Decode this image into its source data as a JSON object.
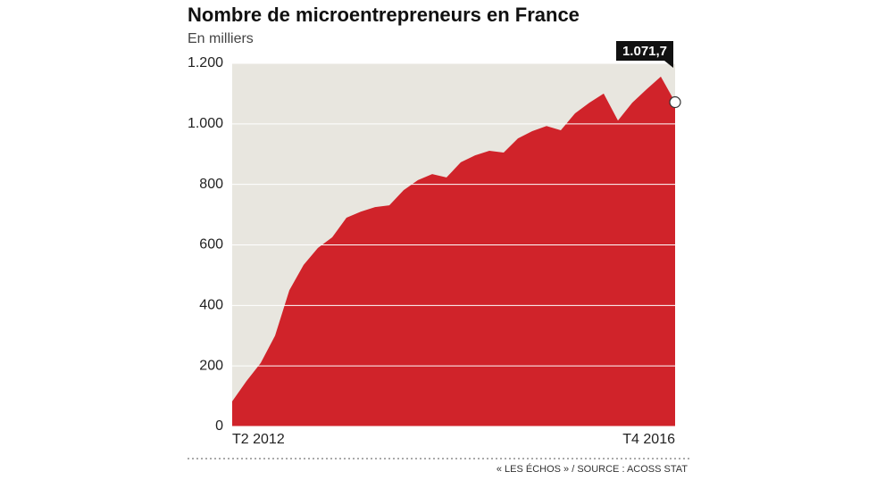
{
  "chart_data": {
    "type": "area",
    "title": "Nombre de microentrepreneurs en France",
    "subtitle": "En milliers",
    "source": "« LES ÉCHOS » / SOURCE : ACOSS STAT",
    "categories": [
      "T2 2012",
      null,
      null,
      null,
      null,
      null,
      null,
      null,
      null,
      null,
      null,
      null,
      null,
      null,
      null,
      null,
      null,
      null,
      null,
      null,
      null,
      null,
      null,
      null,
      null,
      null,
      null,
      null,
      null,
      null,
      null,
      "T4 2016"
    ],
    "series": [
      {
        "name": "Microentrepreneurs",
        "color": "#d0232a",
        "values": [
          83,
          150,
          210,
          300,
          450,
          534,
          590,
          625,
          690,
          710,
          725,
          731,
          781,
          814,
          834,
          823,
          873,
          896,
          911,
          905,
          952,
          976,
          993,
          979,
          1035,
          1070,
          1100,
          1011,
          1070,
          1114,
          1156,
          1071.7
        ],
        "value_labels": {
          "31": "1.071,7"
        }
      }
    ],
    "ylim": [
      0,
      1200
    ],
    "yticks": [
      0,
      200,
      400,
      600,
      800,
      {
        "value": 1000,
        "label": "1.000"
      },
      {
        "value": 1200,
        "label": "1.200"
      }
    ],
    "grid": true,
    "background": "#e8e6df"
  }
}
